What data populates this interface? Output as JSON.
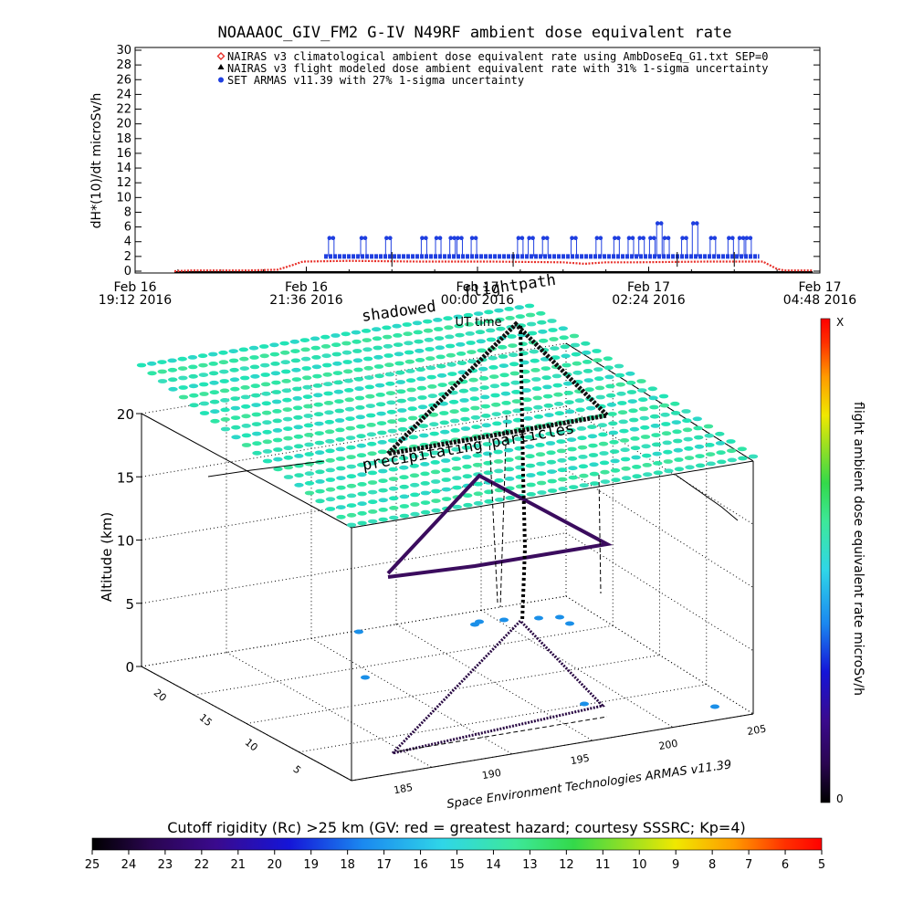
{
  "title": "NOAAAOC_GIV_FM2 G-IV   N49RF  ambient dose equivalent rate",
  "chart_data": [
    {
      "type": "line",
      "panel": "time series",
      "ylabel": "dH*(10)/dt microSv/h",
      "xlabel": "UT time",
      "ylim": [
        0,
        30
      ],
      "yticks": [
        "0",
        "2",
        "4",
        "6",
        "8",
        "10",
        "12",
        "14",
        "16",
        "18",
        "20",
        "22",
        "24",
        "26",
        "28",
        "30"
      ],
      "xticks": [
        {
          "t": 0,
          "line1": "Feb 16",
          "line2": "19:12 2016"
        },
        {
          "t": 2.4,
          "line1": "Feb 16",
          "line2": "21:36 2016"
        },
        {
          "t": 4.8,
          "line1": "Feb 17",
          "line2": "00:00 2016"
        },
        {
          "t": 7.2,
          "line1": "Feb 17",
          "line2": "02:24 2016"
        },
        {
          "t": 9.6,
          "line1": "Feb 17",
          "line2": "04:48 2016"
        }
      ],
      "legend_position": "top",
      "series": [
        {
          "name": "NAIRAS v3 climatological ambient dose equivalent rate using AmbDoseEq_G1.txt SEP=0",
          "marker": "diamond",
          "color": "#e8302a",
          "points": [
            [
              0.55,
              0
            ],
            [
              0.8,
              0.1
            ],
            [
              1.2,
              0.1
            ],
            [
              1.6,
              0.1
            ],
            [
              2.0,
              0.2
            ],
            [
              2.2,
              0.8
            ],
            [
              2.35,
              1.3
            ],
            [
              3.0,
              1.4
            ],
            [
              4.0,
              1.3
            ],
            [
              5.0,
              1.3
            ],
            [
              6.0,
              1.2
            ],
            [
              6.3,
              1.0
            ],
            [
              6.6,
              1.2
            ],
            [
              7.0,
              1.2
            ],
            [
              8.0,
              1.3
            ],
            [
              8.8,
              1.3
            ],
            [
              9.0,
              0.3
            ],
            [
              9.1,
              0.1
            ],
            [
              9.5,
              0.1
            ]
          ]
        },
        {
          "name": "NAIRAS v3 flight modeled dose ambient equivalent rate with 31% 1-sigma uncertainty",
          "marker": "triangle",
          "color": "#000000",
          "points": [
            [
              0.55,
              0
            ],
            [
              9.5,
              0
            ]
          ]
        },
        {
          "name": "SET ARMAS v11.39 with 27% 1-sigma uncertainty",
          "marker": "circle",
          "color": "#1f3fe0",
          "baseline": 2,
          "x_range": [
            2.65,
            8.75
          ],
          "spikes": [
            [
              2.75,
              4.5
            ],
            [
              3.2,
              4.5
            ],
            [
              3.55,
              4.5
            ],
            [
              4.05,
              4.5
            ],
            [
              4.25,
              4.5
            ],
            [
              4.45,
              4.5
            ],
            [
              4.55,
              4.5
            ],
            [
              4.75,
              4.5
            ],
            [
              5.4,
              4.5
            ],
            [
              5.55,
              4.5
            ],
            [
              5.75,
              4.5
            ],
            [
              6.15,
              4.5
            ],
            [
              6.5,
              4.5
            ],
            [
              6.75,
              4.5
            ],
            [
              6.95,
              4.5
            ],
            [
              7.1,
              4.5
            ],
            [
              7.25,
              4.5
            ],
            [
              7.45,
              4.5
            ],
            [
              7.7,
              4.5
            ],
            [
              8.1,
              4.5
            ],
            [
              8.35,
              4.5
            ],
            [
              8.5,
              4.5
            ],
            [
              8.6,
              4.5
            ],
            [
              7.35,
              6.5
            ],
            [
              7.85,
              6.5
            ]
          ]
        }
      ]
    },
    {
      "type": "scatter",
      "panel": "3D flight path",
      "zlabel": "Altitude (km)",
      "zlim": [
        0,
        20
      ],
      "zticks": [
        "0",
        "5",
        "10",
        "15",
        "20"
      ],
      "yticks": [
        "5",
        "10",
        "15",
        "20"
      ],
      "xticks": [
        "185",
        "190",
        "195",
        "200",
        "205"
      ],
      "annotations": [
        "shadowed",
        "flightpath",
        "UT time",
        "precipitating particles",
        "Space Environment Technologies ARMAS v11.39"
      ],
      "colorbar": {
        "label": "flight ambient dose equivalent rate microSv/h",
        "min_label": "0",
        "max_label": "X",
        "colors": [
          "#000000",
          "#3a0a6e",
          "#1010d0",
          "#1a9ff0",
          "#36e3c0",
          "#4ee26a",
          "#b8e020",
          "#ffd000",
          "#ff7000",
          "#ff0000"
        ]
      },
      "flight_path": [
        [
          187,
          5.2,
          0.1
        ],
        [
          187,
          7.3,
          12.2
        ],
        [
          201.9,
          5.5,
          12.2
        ],
        [
          201.9,
          5.5,
          12.2
        ],
        [
          197.2,
          17.6,
          12.0
        ],
        [
          196.7,
          20.2,
          0.4
        ]
      ]
    }
  ],
  "cutoff_bar": {
    "title": "Cutoff rigidity (Rc) >25 km (GV: red = greatest hazard; courtesy SSSRC; Kp=4)",
    "labels": [
      "25",
      "24",
      "23",
      "22",
      "21",
      "20",
      "19",
      "18",
      "17",
      "16",
      "15",
      "14",
      "13",
      "12",
      "11",
      "10",
      "9",
      "8",
      "7",
      "6",
      "5"
    ]
  }
}
